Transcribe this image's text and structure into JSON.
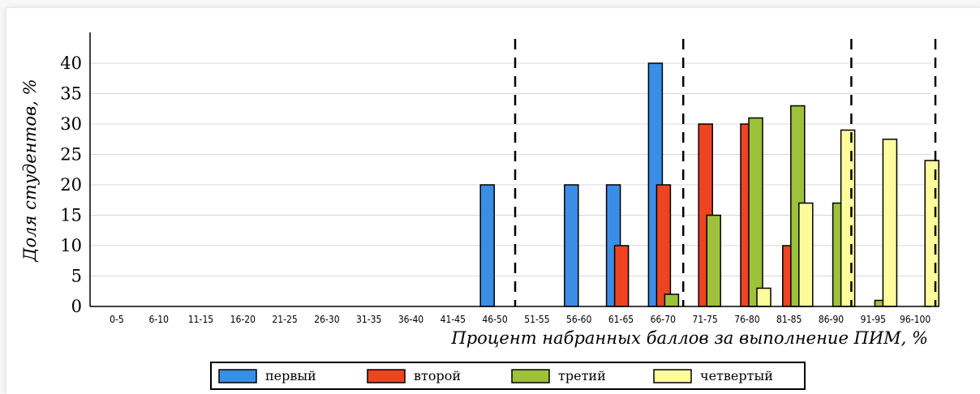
{
  "chart_data": {
    "type": "bar",
    "categories": [
      "0-5",
      "6-10",
      "11-15",
      "16-20",
      "21-25",
      "26-30",
      "31-35",
      "36-40",
      "41-45",
      "46-50",
      "51-55",
      "56-60",
      "61-65",
      "66-70",
      "71-75",
      "76-80",
      "81-85",
      "86-90",
      "91-95",
      "96-100"
    ],
    "series": [
      {
        "name": "первый",
        "color": "#3a8ee6",
        "values": [
          0,
          0,
          0,
          0,
          0,
          0,
          0,
          0,
          0,
          20,
          0,
          20,
          20,
          40,
          0,
          0,
          0,
          0,
          0,
          0
        ]
      },
      {
        "name": "второй",
        "color": "#ee4422",
        "values": [
          0,
          0,
          0,
          0,
          0,
          0,
          0,
          0,
          0,
          0,
          0,
          0,
          10,
          20,
          30,
          30,
          10,
          0,
          0,
          0
        ]
      },
      {
        "name": "третий",
        "color": "#9dc13a",
        "values": [
          0,
          0,
          0,
          0,
          0,
          0,
          0,
          0,
          0,
          0,
          0,
          0,
          0,
          2,
          15,
          31,
          33,
          17,
          1,
          0
        ]
      },
      {
        "name": "четвертый",
        "color": "#fcfc9c",
        "values": [
          0,
          0,
          0,
          0,
          0,
          0,
          0,
          0,
          0,
          0,
          0,
          0,
          0,
          0,
          0,
          3,
          17,
          29,
          27.5,
          24
        ]
      }
    ],
    "xlabel": "Процент набранных баллов за выполнение ПИМ, %",
    "ylabel": "Доля студентов, %",
    "ylim": [
      0,
      40
    ],
    "yticks": [
      0,
      5,
      10,
      15,
      20,
      25,
      30,
      35,
      40
    ],
    "grid": true,
    "dashed_dividers_after_categories": [
      "46-50",
      "66-70",
      "86-90",
      "96-100"
    ],
    "legend_position": "bottom-center"
  }
}
